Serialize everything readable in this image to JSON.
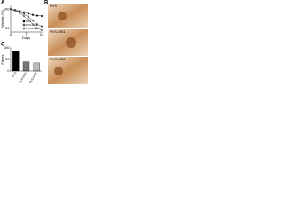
{
  "panels": [
    "A",
    "B",
    "C"
  ],
  "micrographs": {
    "labels": [
      "PVS",
      "PVS-MS1",
      "PVS-MS2"
    ]
  },
  "chart_data": [
    {
      "type": "line",
      "xlabel": "Days",
      "ylabel": "Weight (%)",
      "x": [
        0,
        2,
        4,
        6,
        8,
        10,
        12,
        14
      ],
      "xlim": [
        0,
        14
      ],
      "xticks": [
        0,
        7,
        14
      ],
      "ylim": [
        40,
        110
      ],
      "yticks": [
        50,
        100
      ],
      "series": [
        {
          "name": "PVS",
          "color": "#000000",
          "values": [
            100,
            98,
            95,
            92,
            88,
            85,
            83,
            82
          ]
        },
        {
          "name": "PVS-MS1",
          "color": "#777777",
          "values": [
            100,
            97,
            93,
            88,
            80,
            70,
            60,
            55
          ]
        },
        {
          "name": "PVS-MS2",
          "color": "#bbbbbb",
          "values": [
            100,
            96,
            90,
            82,
            72,
            60,
            50,
            45
          ]
        }
      ]
    },
    {
      "type": "bar",
      "ylabel": "Fibers",
      "categories": [
        "PVS",
        "PVS-MS1",
        "PVS-MS2"
      ],
      "values": [
        85,
        40,
        35
      ],
      "colors": [
        "#000000",
        "#777777",
        "#bbbbbb"
      ],
      "ylim": [
        0,
        100
      ],
      "yticks": [
        0,
        50,
        100
      ]
    }
  ]
}
